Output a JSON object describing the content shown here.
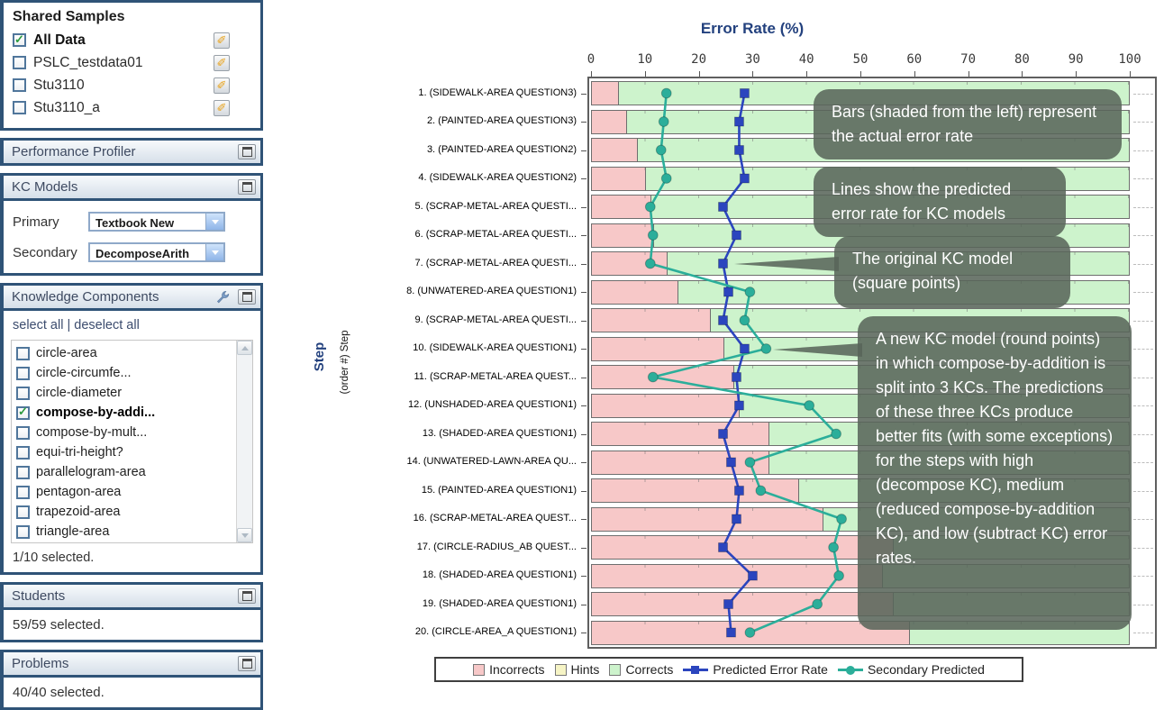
{
  "sidebar": {
    "shared_samples": {
      "title": "Shared Samples",
      "items": [
        {
          "label": "All Data",
          "checked": true
        },
        {
          "label": "PSLC_testdata01",
          "checked": false
        },
        {
          "label": "Stu3110",
          "checked": false
        },
        {
          "label": "Stu3110_a",
          "checked": false
        }
      ]
    },
    "performance_profiler": {
      "title": "Performance Profiler"
    },
    "kc_models": {
      "title": "KC Models",
      "primary_label": "Primary",
      "primary_value": "Textbook New",
      "secondary_label": "Secondary",
      "secondary_value": "DecomposeArith"
    },
    "knowledge_components": {
      "title": "Knowledge Components",
      "select_all": "select all",
      "links_separator": "|",
      "deselect_all": "deselect all",
      "items": [
        {
          "label": "circle-area",
          "checked": false
        },
        {
          "label": "circle-circumfe...",
          "checked": false
        },
        {
          "label": "circle-diameter",
          "checked": false
        },
        {
          "label": "compose-by-addi...",
          "checked": true
        },
        {
          "label": "compose-by-mult...",
          "checked": false
        },
        {
          "label": "equi-tri-height?",
          "checked": false
        },
        {
          "label": "parallelogram-area",
          "checked": false
        },
        {
          "label": "pentagon-area",
          "checked": false
        },
        {
          "label": "trapezoid-area",
          "checked": false
        },
        {
          "label": "triangle-area",
          "checked": false
        }
      ],
      "selected_text": "1/10 selected."
    },
    "students": {
      "title": "Students",
      "selected_text": "59/59 selected."
    },
    "problems": {
      "title": "Problems",
      "selected_text": "40/40 selected."
    }
  },
  "chart_data": {
    "type": "bar",
    "orientation": "horizontal-stacked",
    "title": "Error Rate (%)",
    "ylabel": "Step",
    "ylabel_secondary": "(order #) Step",
    "xlim": [
      0,
      100
    ],
    "xticks": [
      0,
      10,
      20,
      30,
      40,
      50,
      60,
      70,
      80,
      90,
      100
    ],
    "grid": "minor ticks each 10",
    "legend_position": "bottom",
    "categories": [
      "1. (SIDEWALK-AREA QUESTION3)",
      "2. (PAINTED-AREA QUESTION3)",
      "3. (PAINTED-AREA QUESTION2)",
      "4. (SIDEWALK-AREA QUESTION2)",
      "5. (SCRAP-METAL-AREA QUESTI...",
      "6. (SCRAP-METAL-AREA QUESTI...",
      "7. (SCRAP-METAL-AREA QUESTI...",
      "8. (UNWATERED-AREA QUESTION1)",
      "9. (SCRAP-METAL-AREA QUESTI...",
      "10. (SIDEWALK-AREA QUESTION1)",
      "11. (SCRAP-METAL-AREA QUEST...",
      "12. (UNSHADED-AREA QUESTION1)",
      "13. (SHADED-AREA QUESTION1)",
      "14. (UNWATERED-LAWN-AREA QU...",
      "15. (PAINTED-AREA QUESTION1)",
      "16. (SCRAP-METAL-AREA QUEST...",
      "17. (CIRCLE-RADIUS_AB QUEST...",
      "18. (SHADED-AREA QUESTION1)",
      "19. (SHADED-AREA QUESTION1)",
      "20. (CIRCLE-AREA_A QUESTION1)"
    ],
    "series": [
      {
        "name": "Incorrects",
        "type": "bar",
        "color": "#F7C8C8",
        "values": [
          5,
          6.5,
          8.5,
          10,
          11,
          11.5,
          14,
          16,
          22,
          24.5,
          26.5,
          27.5,
          33,
          33,
          38.5,
          43,
          56,
          54,
          56,
          59
        ]
      },
      {
        "name": "Hints",
        "type": "bar",
        "color": "#F6F4C5",
        "values": [
          0,
          0,
          0,
          0,
          0,
          0,
          0,
          0,
          0,
          0,
          0,
          0,
          0,
          0,
          0,
          0,
          0,
          0,
          0,
          0
        ]
      },
      {
        "name": "Corrects",
        "type": "bar",
        "color": "#CDF3CC",
        "values": [
          95,
          93.5,
          91.5,
          90,
          89,
          88.5,
          86,
          84,
          78,
          75.5,
          73.5,
          72.5,
          67,
          67,
          61.5,
          57,
          44,
          46,
          44,
          41
        ]
      },
      {
        "name": "Predicted Error Rate",
        "type": "line",
        "marker": "square",
        "color": "#2B45BE",
        "values": [
          28.5,
          27.5,
          27.5,
          28.5,
          24.5,
          27,
          24.5,
          25.5,
          24.5,
          28.5,
          27,
          27.5,
          24.5,
          26,
          27.5,
          27,
          24.5,
          30,
          25.5,
          26
        ]
      },
      {
        "name": "Secondary Predicted",
        "type": "line",
        "marker": "circle",
        "color": "#2BAE9A",
        "values": [
          14,
          13.5,
          13,
          14,
          11,
          11.5,
          11,
          29.5,
          28.5,
          32.5,
          11.5,
          40.5,
          45.5,
          29.5,
          31.5,
          46.5,
          45,
          46,
          42,
          29.5
        ]
      }
    ]
  },
  "callouts": [
    {
      "text": "Bars (shaded from the left) represent the actual error rate"
    },
    {
      "text": "Lines show the predicted error rate for KC models"
    },
    {
      "text": "The original KC model (square points)"
    },
    {
      "text": "A new KC model (round points) in which compose-by-addition is split into 3 KCs. The predictions of these three KCs produce better fits (with some exceptions) for the steps with high (decompose KC), medium (reduced compose-by-addition KC), and low (subtract KC) error rates."
    }
  ],
  "colors": {
    "panel_border": "#2F5377",
    "incorrects": "#F7C8C8",
    "hints": "#F6F4C5",
    "corrects": "#CDF3CC",
    "predicted_line": "#2B45BE",
    "secondary_line": "#2BAE9A",
    "callout_bg": "rgba(88,101,90,0.87)",
    "title_navy": "#23417e"
  }
}
